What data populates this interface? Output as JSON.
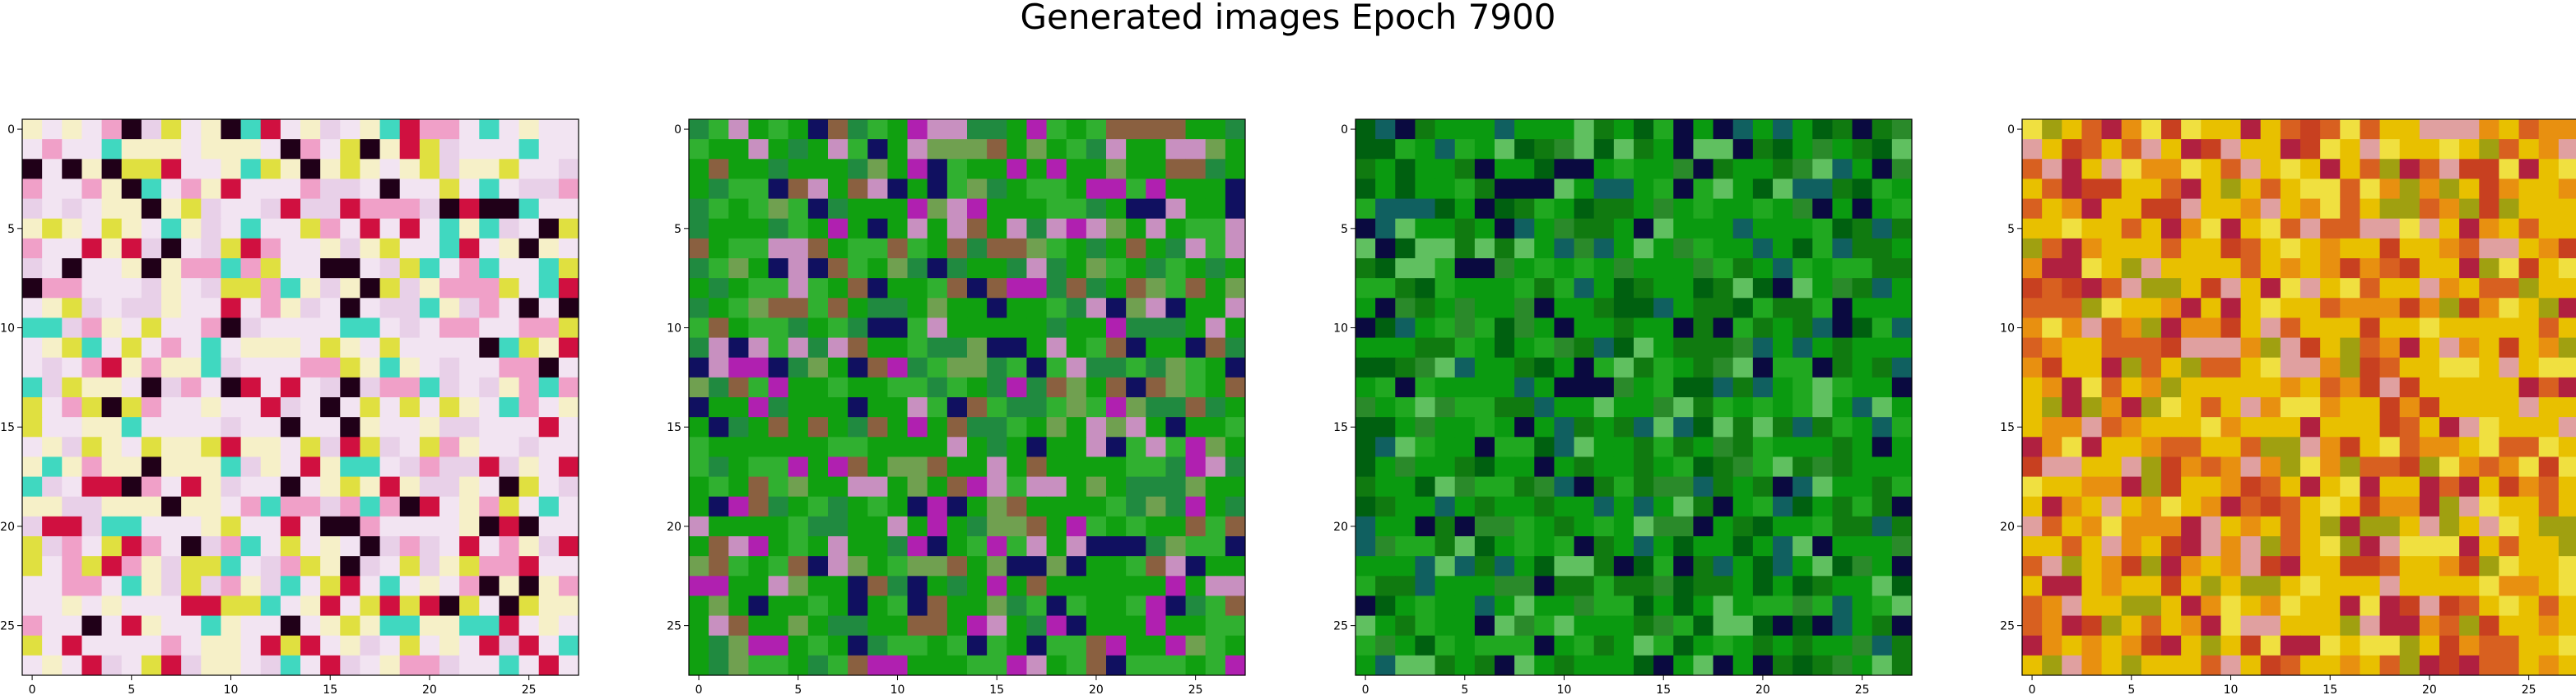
{
  "figure": {
    "title": "Generated images Epoch 7900"
  },
  "chart_data": [
    {
      "type": "heatmap",
      "title": "",
      "xlabel": "",
      "ylabel": "",
      "x_ticks": [
        0,
        5,
        10,
        15,
        20,
        25
      ],
      "y_ticks": [
        0,
        5,
        10,
        15,
        20,
        25
      ],
      "xlim": [
        -0.5,
        27.5
      ],
      "ylim": [
        27.5,
        -0.5
      ],
      "grid_size": [
        28,
        28
      ],
      "dominant_palette": [
        "#f2e4f2",
        "#f6f0c8",
        "#e8d0e8",
        "#f0a0c8",
        "#e0e040",
        "#40d8c0",
        "#d01040",
        "#200018"
      ],
      "grid": false
    },
    {
      "type": "heatmap",
      "title": "",
      "xlabel": "",
      "ylabel": "",
      "x_ticks": [
        0,
        5,
        10,
        15,
        20,
        25
      ],
      "y_ticks": [
        0,
        5,
        10,
        15,
        20,
        25
      ],
      "xlim": [
        -0.5,
        27.5
      ],
      "ylim": [
        27.5,
        -0.5
      ],
      "grid_size": [
        28,
        28
      ],
      "dominant_palette": [
        "#10a010",
        "#30b030",
        "#208a40",
        "#c890c0",
        "#8a6040",
        "#b020b0",
        "#101060",
        "#70a050"
      ],
      "grid": false
    },
    {
      "type": "heatmap",
      "title": "",
      "xlabel": "",
      "ylabel": "",
      "x_ticks": [
        0,
        5,
        10,
        15,
        20,
        25
      ],
      "y_ticks": [
        0,
        5,
        10,
        15,
        20,
        25
      ],
      "xlim": [
        -0.5,
        27.5
      ],
      "ylim": [
        27.5,
        -0.5
      ],
      "grid_size": [
        28,
        28
      ],
      "dominant_palette": [
        "#0a9a10",
        "#107a10",
        "#20a820",
        "#006010",
        "#106060",
        "#0a0a40",
        "#60c060",
        "#2a8a2a"
      ],
      "grid": false
    },
    {
      "type": "heatmap",
      "title": "",
      "xlabel": "",
      "ylabel": "",
      "x_ticks": [
        0,
        5,
        10,
        15,
        20,
        25
      ],
      "y_ticks": [
        0,
        5,
        10,
        15,
        20,
        25
      ],
      "xlim": [
        -0.5,
        27.5
      ],
      "ylim": [
        27.5,
        -0.5
      ],
      "grid_size": [
        28,
        28
      ],
      "dominant_palette": [
        "#e8c000",
        "#e89010",
        "#d86020",
        "#f0e040",
        "#c84020",
        "#e0a0a0",
        "#b02040",
        "#a0a010"
      ],
      "grid": false
    }
  ]
}
